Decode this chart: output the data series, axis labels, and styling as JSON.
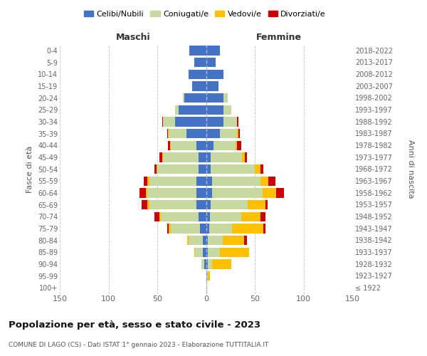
{
  "age_groups": [
    "100+",
    "95-99",
    "90-94",
    "85-89",
    "80-84",
    "75-79",
    "70-74",
    "65-69",
    "60-64",
    "55-59",
    "50-54",
    "45-49",
    "40-44",
    "35-39",
    "30-34",
    "25-29",
    "20-24",
    "15-19",
    "10-14",
    "5-9",
    "0-4"
  ],
  "birth_years": [
    "≤ 1922",
    "1923-1927",
    "1928-1932",
    "1933-1937",
    "1938-1942",
    "1943-1947",
    "1948-1952",
    "1953-1957",
    "1958-1962",
    "1963-1967",
    "1968-1972",
    "1973-1977",
    "1978-1982",
    "1983-1987",
    "1988-1992",
    "1993-1997",
    "1998-2002",
    "2003-2007",
    "2008-2012",
    "2013-2017",
    "2018-2022"
  ],
  "male_celibe": [
    0,
    0,
    2,
    3,
    3,
    6,
    8,
    10,
    10,
    10,
    8,
    8,
    10,
    20,
    32,
    28,
    22,
    14,
    18,
    12,
    17
  ],
  "male_coniugato": [
    0,
    0,
    3,
    8,
    15,
    30,
    38,
    48,
    50,
    48,
    42,
    36,
    26,
    18,
    12,
    4,
    2,
    0,
    0,
    0,
    0
  ],
  "male_vedovo": [
    0,
    0,
    0,
    1,
    1,
    2,
    2,
    2,
    2,
    2,
    1,
    1,
    1,
    1,
    0,
    0,
    0,
    0,
    0,
    0,
    0
  ],
  "male_divorziato": [
    0,
    0,
    0,
    0,
    0,
    2,
    5,
    6,
    6,
    4,
    2,
    3,
    2,
    1,
    1,
    0,
    0,
    0,
    0,
    0,
    0
  ],
  "female_nubile": [
    0,
    1,
    2,
    2,
    2,
    3,
    4,
    5,
    6,
    6,
    5,
    5,
    8,
    14,
    18,
    18,
    18,
    13,
    18,
    10,
    14
  ],
  "female_coniugata": [
    0,
    1,
    4,
    12,
    15,
    24,
    32,
    38,
    52,
    50,
    45,
    32,
    22,
    18,
    14,
    8,
    4,
    0,
    0,
    0,
    0
  ],
  "female_vedova": [
    1,
    2,
    20,
    30,
    22,
    32,
    20,
    18,
    14,
    8,
    6,
    3,
    2,
    1,
    0,
    0,
    0,
    0,
    0,
    0,
    0
  ],
  "female_divorziata": [
    0,
    0,
    0,
    0,
    3,
    2,
    5,
    2,
    8,
    7,
    3,
    2,
    4,
    2,
    1,
    0,
    0,
    0,
    0,
    0,
    0
  ],
  "color_celibe": "#4472c4",
  "color_coniugato": "#c5d9a0",
  "color_vedovo": "#ffc000",
  "color_divorziato": "#cc0000",
  "xlim": 150,
  "title": "Popolazione per età, sesso e stato civile - 2023",
  "subtitle": "COMUNE DI LAGO (CS) - Dati ISTAT 1° gennaio 2023 - Elaborazione TUTTITALIA.IT",
  "ylabel_left": "Fasce di età",
  "ylabel_right": "Anni di nascita",
  "label_maschi": "Maschi",
  "label_femmine": "Femmine",
  "legend_labels": [
    "Celibi/Nubili",
    "Coniugati/e",
    "Vedovi/e",
    "Divorziati/e"
  ],
  "bg_color": "#ffffff",
  "grid_color": "#cccccc"
}
